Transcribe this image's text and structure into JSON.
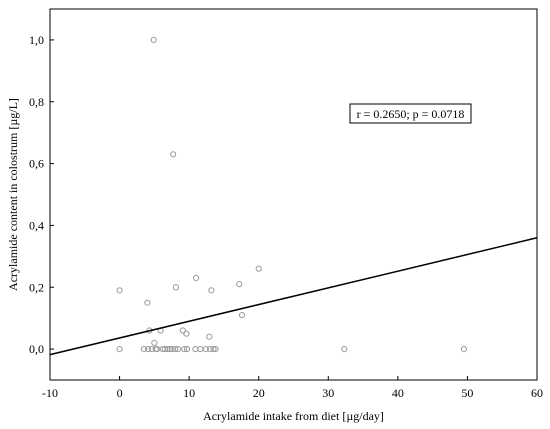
{
  "chart_data": {
    "type": "scatter",
    "title": "",
    "xlabel": "Acrylamide intake from diet [µg/day]",
    "ylabel": "Acrylamide content in colostrum [µg/L]",
    "xlim": [
      -10,
      60
    ],
    "ylim": [
      -0.1,
      1.1
    ],
    "x_ticks": [
      {
        "value": -10,
        "label": "-10"
      },
      {
        "value": 0,
        "label": "0"
      },
      {
        "value": 10,
        "label": "10"
      },
      {
        "value": 20,
        "label": "20"
      },
      {
        "value": 30,
        "label": "30"
      },
      {
        "value": 40,
        "label": "40"
      },
      {
        "value": 50,
        "label": "50"
      },
      {
        "value": 60,
        "label": "60"
      }
    ],
    "y_ticks": [
      {
        "value": 0.0,
        "label": "0,0"
      },
      {
        "value": 0.2,
        "label": "0,2"
      },
      {
        "value": 0.4,
        "label": "0,4"
      },
      {
        "value": 0.6,
        "label": "0,6"
      },
      {
        "value": 0.8,
        "label": "0,8"
      },
      {
        "value": 1.0,
        "label": "1,0"
      }
    ],
    "grid": false,
    "annotation": "r = 0.2650; p = 0.0718",
    "regression_line": {
      "x": [
        -10,
        60
      ],
      "y": [
        -0.018,
        0.36
      ]
    },
    "points": [
      {
        "x": 0.0,
        "y": 0.19
      },
      {
        "x": 0.0,
        "y": 0.0
      },
      {
        "x": 3.5,
        "y": 0.0
      },
      {
        "x": 4.0,
        "y": 0.15
      },
      {
        "x": 4.1,
        "y": 0.0
      },
      {
        "x": 4.3,
        "y": 0.06
      },
      {
        "x": 4.6,
        "y": 0.0
      },
      {
        "x": 4.9,
        "y": 1.0
      },
      {
        "x": 5.0,
        "y": 0.02
      },
      {
        "x": 5.2,
        "y": 0.0
      },
      {
        "x": 5.4,
        "y": 0.0
      },
      {
        "x": 5.9,
        "y": 0.06
      },
      {
        "x": 6.2,
        "y": 0.0
      },
      {
        "x": 6.5,
        "y": 0.0
      },
      {
        "x": 6.9,
        "y": 0.0
      },
      {
        "x": 7.2,
        "y": 0.0
      },
      {
        "x": 7.5,
        "y": 0.0
      },
      {
        "x": 7.7,
        "y": 0.63
      },
      {
        "x": 8.0,
        "y": 0.0
      },
      {
        "x": 8.1,
        "y": 0.2
      },
      {
        "x": 8.4,
        "y": 0.0
      },
      {
        "x": 9.1,
        "y": 0.06
      },
      {
        "x": 9.3,
        "y": 0.0
      },
      {
        "x": 9.6,
        "y": 0.05
      },
      {
        "x": 9.7,
        "y": 0.0
      },
      {
        "x": 10.9,
        "y": 0.0
      },
      {
        "x": 11.0,
        "y": 0.23
      },
      {
        "x": 11.6,
        "y": 0.0
      },
      {
        "x": 12.4,
        "y": 0.0
      },
      {
        "x": 12.9,
        "y": 0.04
      },
      {
        "x": 13.0,
        "y": 0.0
      },
      {
        "x": 13.2,
        "y": 0.19
      },
      {
        "x": 13.5,
        "y": 0.0
      },
      {
        "x": 13.8,
        "y": 0.0
      },
      {
        "x": 17.2,
        "y": 0.21
      },
      {
        "x": 17.6,
        "y": 0.11
      },
      {
        "x": 20.0,
        "y": 0.26
      },
      {
        "x": 32.3,
        "y": 0.0
      },
      {
        "x": 49.5,
        "y": 0.0
      }
    ]
  },
  "colors": {
    "frame": "#000000",
    "marker": "#9a9a9a",
    "line": "#000000",
    "background": "#ffffff"
  }
}
